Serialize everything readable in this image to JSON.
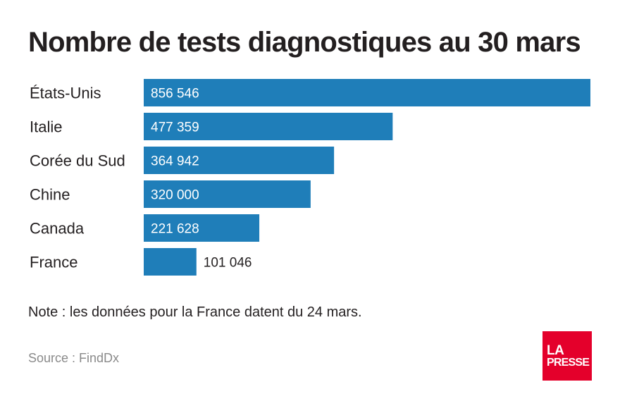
{
  "chart_data": {
    "type": "bar",
    "orientation": "horizontal",
    "title": "Nombre de tests diagnostiques au 30 mars",
    "categories": [
      "États-Unis",
      "Italie",
      "Corée du Sud",
      "Chine",
      "Canada",
      "France"
    ],
    "values": [
      856546,
      477359,
      364942,
      320000,
      221628,
      101046
    ],
    "value_labels": [
      "856 546",
      "477 359",
      "364 942",
      "320 000",
      "221 628",
      "101 046"
    ],
    "xlim": [
      0,
      856546
    ],
    "grid": false,
    "legend": "none"
  },
  "colors": {
    "bar": "#1f7eb9",
    "title": "#231f20",
    "source": "#8a8a8a",
    "logo_bg": "#e4002b"
  },
  "note": "Note : les données pour la France datent du 24 mars.",
  "source": "Source : FindDx",
  "logo": {
    "line1": "LA",
    "line2": "PRESSE"
  }
}
